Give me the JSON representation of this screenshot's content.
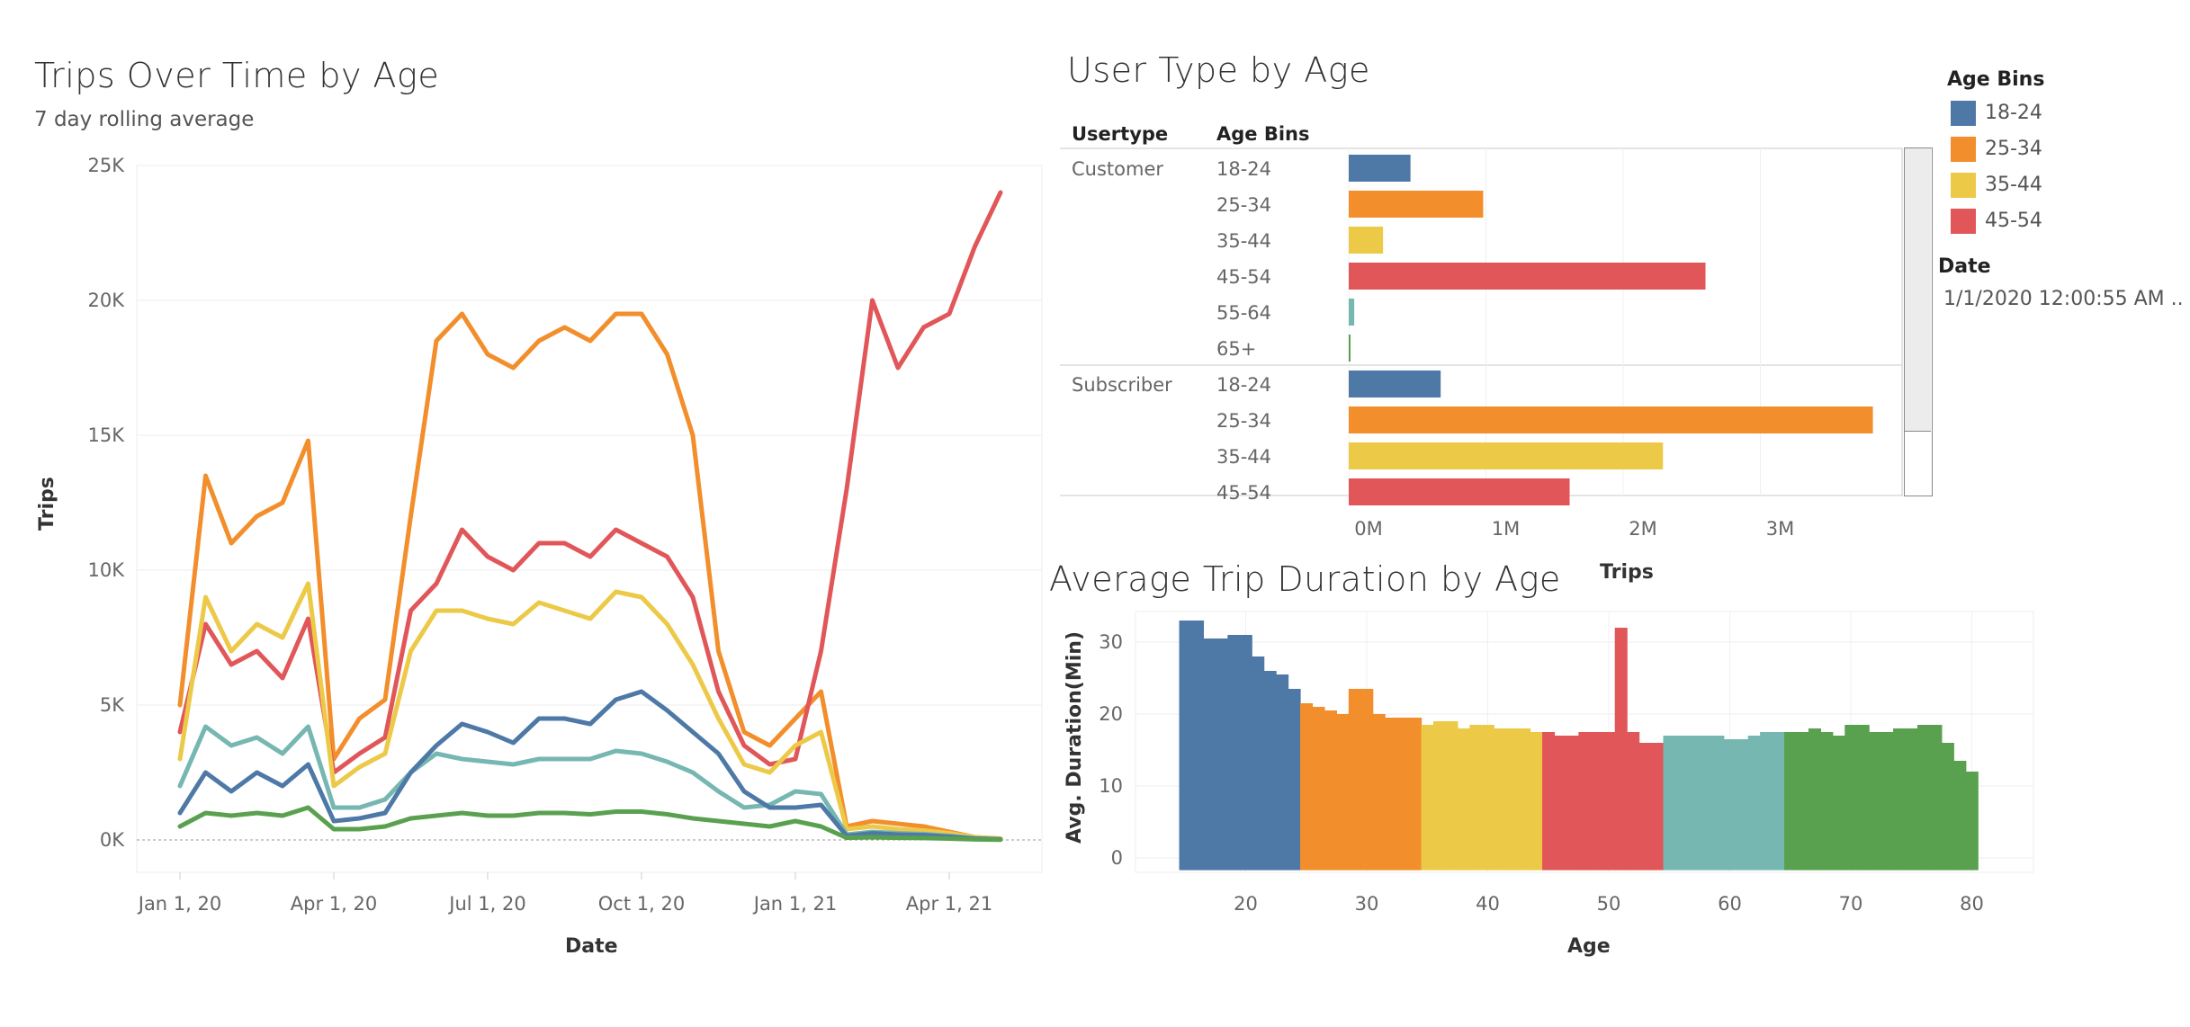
{
  "colors": {
    "18-24": "#4E79A7",
    "25-34": "#F28E2B",
    "35-44": "#EDC948",
    "45-54": "#E15759",
    "55-64": "#76B7B2",
    "65+": "#59A14F"
  },
  "legend": {
    "title": "Age Bins",
    "items": [
      "18-24",
      "25-34",
      "35-44",
      "45-54"
    ],
    "date_title": "Date",
    "date_value": "1/1/2020 12:00:55 AM .."
  },
  "chart_data": [
    {
      "type": "line",
      "title": "Trips Over Time by Age",
      "subtitle": "7 day rolling average",
      "xlabel": "Date",
      "ylabel": "Trips",
      "xticks": [
        "Jan 1, 20",
        "Apr 1, 20",
        "Jul 1, 20",
        "Oct 1, 20",
        "Jan 1, 21",
        "Apr 1, 21"
      ],
      "yticks": [
        "0K",
        "5K",
        "10K",
        "15K",
        "20K",
        "25K"
      ],
      "ylim": [
        0,
        25000
      ],
      "x": [
        "Jan 1, 20",
        "Jan 15, 20",
        "Feb 1, 20",
        "Feb 15, 20",
        "Mar 1, 20",
        "Mar 15, 20",
        "Apr 1, 20",
        "Apr 15, 20",
        "May 1, 20",
        "May 15, 20",
        "Jun 1, 20",
        "Jun 15, 20",
        "Jul 1, 20",
        "Jul 15, 20",
        "Aug 1, 20",
        "Aug 15, 20",
        "Sep 1, 20",
        "Sep 15, 20",
        "Oct 1, 20",
        "Oct 15, 20",
        "Nov 1, 20",
        "Nov 15, 20",
        "Dec 1, 20",
        "Dec 15, 20",
        "Jan 1, 21",
        "Jan 15, 21",
        "Feb 1, 21",
        "Feb 15, 21",
        "Mar 1, 21",
        "Mar 15, 21",
        "Apr 1, 21",
        "Apr 15, 21",
        "May 1, 21"
      ],
      "series": [
        {
          "key": "25-34",
          "values": [
            5000,
            13500,
            11000,
            12000,
            12500,
            14800,
            3000,
            4500,
            5200,
            12000,
            18500,
            19500,
            18000,
            17500,
            18500,
            19000,
            18500,
            19500,
            19500,
            18000,
            15000,
            7000,
            4000,
            3500,
            4500,
            5500,
            500,
            700,
            600,
            500,
            300,
            100,
            50
          ]
        },
        {
          "key": "45-54",
          "values": [
            4000,
            8000,
            6500,
            7000,
            6000,
            8200,
            2500,
            3200,
            3800,
            8500,
            9500,
            11500,
            10500,
            10000,
            11000,
            11000,
            10500,
            11500,
            11000,
            10500,
            9000,
            5500,
            3500,
            2800,
            3000,
            7000,
            13000,
            20000,
            17500,
            19000,
            19500,
            22000,
            24000
          ]
        },
        {
          "key": "35-44",
          "values": [
            3000,
            9000,
            7000,
            8000,
            7500,
            9500,
            2000,
            2700,
            3200,
            7000,
            8500,
            8500,
            8200,
            8000,
            8800,
            8500,
            8200,
            9200,
            9000,
            8000,
            6500,
            4500,
            2800,
            2500,
            3500,
            4000,
            400,
            500,
            400,
            350,
            250,
            100,
            40
          ]
        },
        {
          "key": "55-64",
          "values": [
            2000,
            4200,
            3500,
            3800,
            3200,
            4200,
            1200,
            1200,
            1500,
            2500,
            3200,
            3000,
            2900,
            2800,
            3000,
            3000,
            3000,
            3300,
            3200,
            2900,
            2500,
            1800,
            1200,
            1300,
            1800,
            1700,
            200,
            300,
            250,
            220,
            150,
            60,
            20
          ]
        },
        {
          "key": "18-24",
          "values": [
            1000,
            2500,
            1800,
            2500,
            2000,
            2800,
            700,
            800,
            1000,
            2500,
            3500,
            4300,
            4000,
            3600,
            4500,
            4500,
            4300,
            5200,
            5500,
            4800,
            4000,
            3200,
            1800,
            1200,
            1200,
            1300,
            150,
            250,
            200,
            180,
            120,
            50,
            20
          ]
        },
        {
          "key": "65+",
          "values": [
            500,
            1000,
            900,
            1000,
            900,
            1200,
            400,
            400,
            500,
            800,
            900,
            1000,
            900,
            900,
            1000,
            1000,
            950,
            1050,
            1050,
            950,
            800,
            700,
            600,
            500,
            700,
            500,
            80,
            100,
            80,
            70,
            50,
            20,
            10
          ]
        }
      ]
    },
    {
      "type": "bar",
      "title": "User Type by Age",
      "xlabel": "Trips",
      "columns": [
        "Usertype",
        "Age Bins"
      ],
      "xticks": [
        "0M",
        "1M",
        "2M",
        "3M"
      ],
      "xlim": [
        0,
        3800000
      ],
      "groups": [
        {
          "usertype": "Customer",
          "rows": [
            {
              "age": "18-24",
              "value": 450000
            },
            {
              "age": "25-34",
              "value": 980000
            },
            {
              "age": "35-44",
              "value": 250000
            },
            {
              "age": "45-54",
              "value": 2600000
            },
            {
              "age": "55-64",
              "value": 40000
            },
            {
              "age": "65+",
              "value": 10000
            }
          ]
        },
        {
          "usertype": "Subscriber",
          "rows": [
            {
              "age": "18-24",
              "value": 670000
            },
            {
              "age": "25-34",
              "value": 3820000
            },
            {
              "age": "35-44",
              "value": 2290000
            },
            {
              "age": "45-54",
              "value": 1610000
            }
          ]
        }
      ]
    },
    {
      "type": "bar",
      "title": "Average Trip Duration by Age",
      "xlabel": "Age",
      "ylabel": "Avg. Duration(Min)",
      "xticks": [
        "20",
        "30",
        "40",
        "50",
        "60",
        "70",
        "80"
      ],
      "yticks": [
        "0",
        "10",
        "20",
        "30"
      ],
      "ylim": [
        -2,
        35
      ],
      "x": [
        15,
        16,
        17,
        18,
        19,
        20,
        21,
        22,
        23,
        24,
        25,
        26,
        27,
        28,
        29,
        30,
        31,
        32,
        33,
        34,
        35,
        36,
        37,
        38,
        39,
        40,
        41,
        42,
        43,
        44,
        45,
        46,
        47,
        48,
        49,
        50,
        51,
        52,
        53,
        54,
        55,
        56,
        57,
        58,
        59,
        60,
        61,
        62,
        63,
        64,
        65,
        66,
        67,
        68,
        69,
        70,
        71,
        72,
        73,
        74,
        75,
        76,
        77,
        78,
        79,
        80
      ],
      "values": [
        33,
        33,
        30.5,
        30.5,
        31,
        31,
        28,
        26,
        25.5,
        23.5,
        21.5,
        21,
        20.5,
        20,
        23.5,
        23.5,
        20,
        19.5,
        19.5,
        19.5,
        18.5,
        19,
        19,
        18,
        18.5,
        18.5,
        18,
        18,
        18,
        17.5,
        17.5,
        17,
        17,
        17.5,
        17.5,
        17.5,
        32,
        17.5,
        16,
        16,
        17,
        17,
        17,
        17,
        17,
        16.5,
        16.5,
        17,
        17.5,
        17.5,
        17.5,
        17.5,
        18,
        17.5,
        17,
        18.5,
        18.5,
        17.5,
        17.5,
        18,
        18,
        18.5,
        18.5,
        16,
        13.5,
        12
      ]
    }
  ]
}
